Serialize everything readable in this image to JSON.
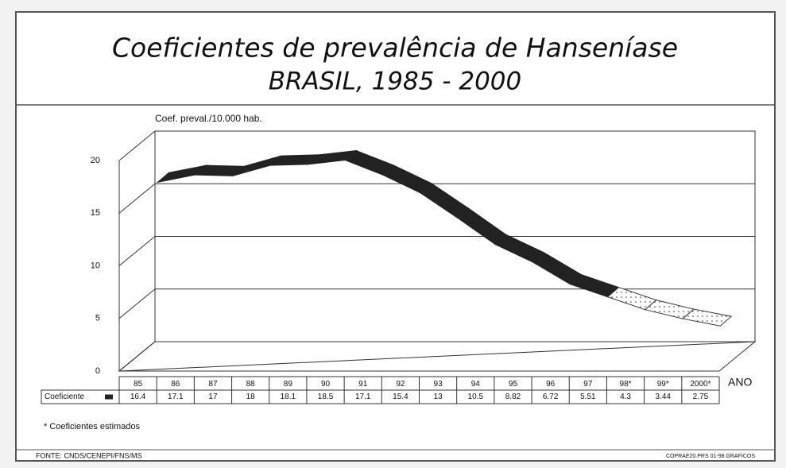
{
  "chart_data": {
    "type": "line3d",
    "title": "Coeficientes de prevalência de Hanseníase",
    "subtitle": "BRASIL, 1985 - 2000",
    "y_label": "Coef. preval./10.000 hab.",
    "x_label": "ANO",
    "categories": [
      "85",
      "86",
      "87",
      "88",
      "89",
      "90",
      "91",
      "92",
      "93",
      "94",
      "95",
      "96",
      "97",
      "98*",
      "99*",
      "2000*"
    ],
    "series": [
      {
        "name": "Coeficiente",
        "color": "#222222",
        "values": [
          16.4,
          17.1,
          17,
          18,
          18.1,
          18.5,
          17.1,
          15.4,
          13,
          10.5,
          8.82,
          6.72,
          5.51,
          4.3,
          3.44,
          2.75
        ]
      }
    ],
    "ylim": [
      0,
      20
    ],
    "yticks": [
      0,
      5,
      10,
      15,
      20
    ],
    "grid": true,
    "footnote": "* Coeficientes estimados",
    "source": "FONTE: CNDS/CENEPI/FNS/MS",
    "code": "COPRAE20.PRS 01-98 GRAFICOS"
  }
}
